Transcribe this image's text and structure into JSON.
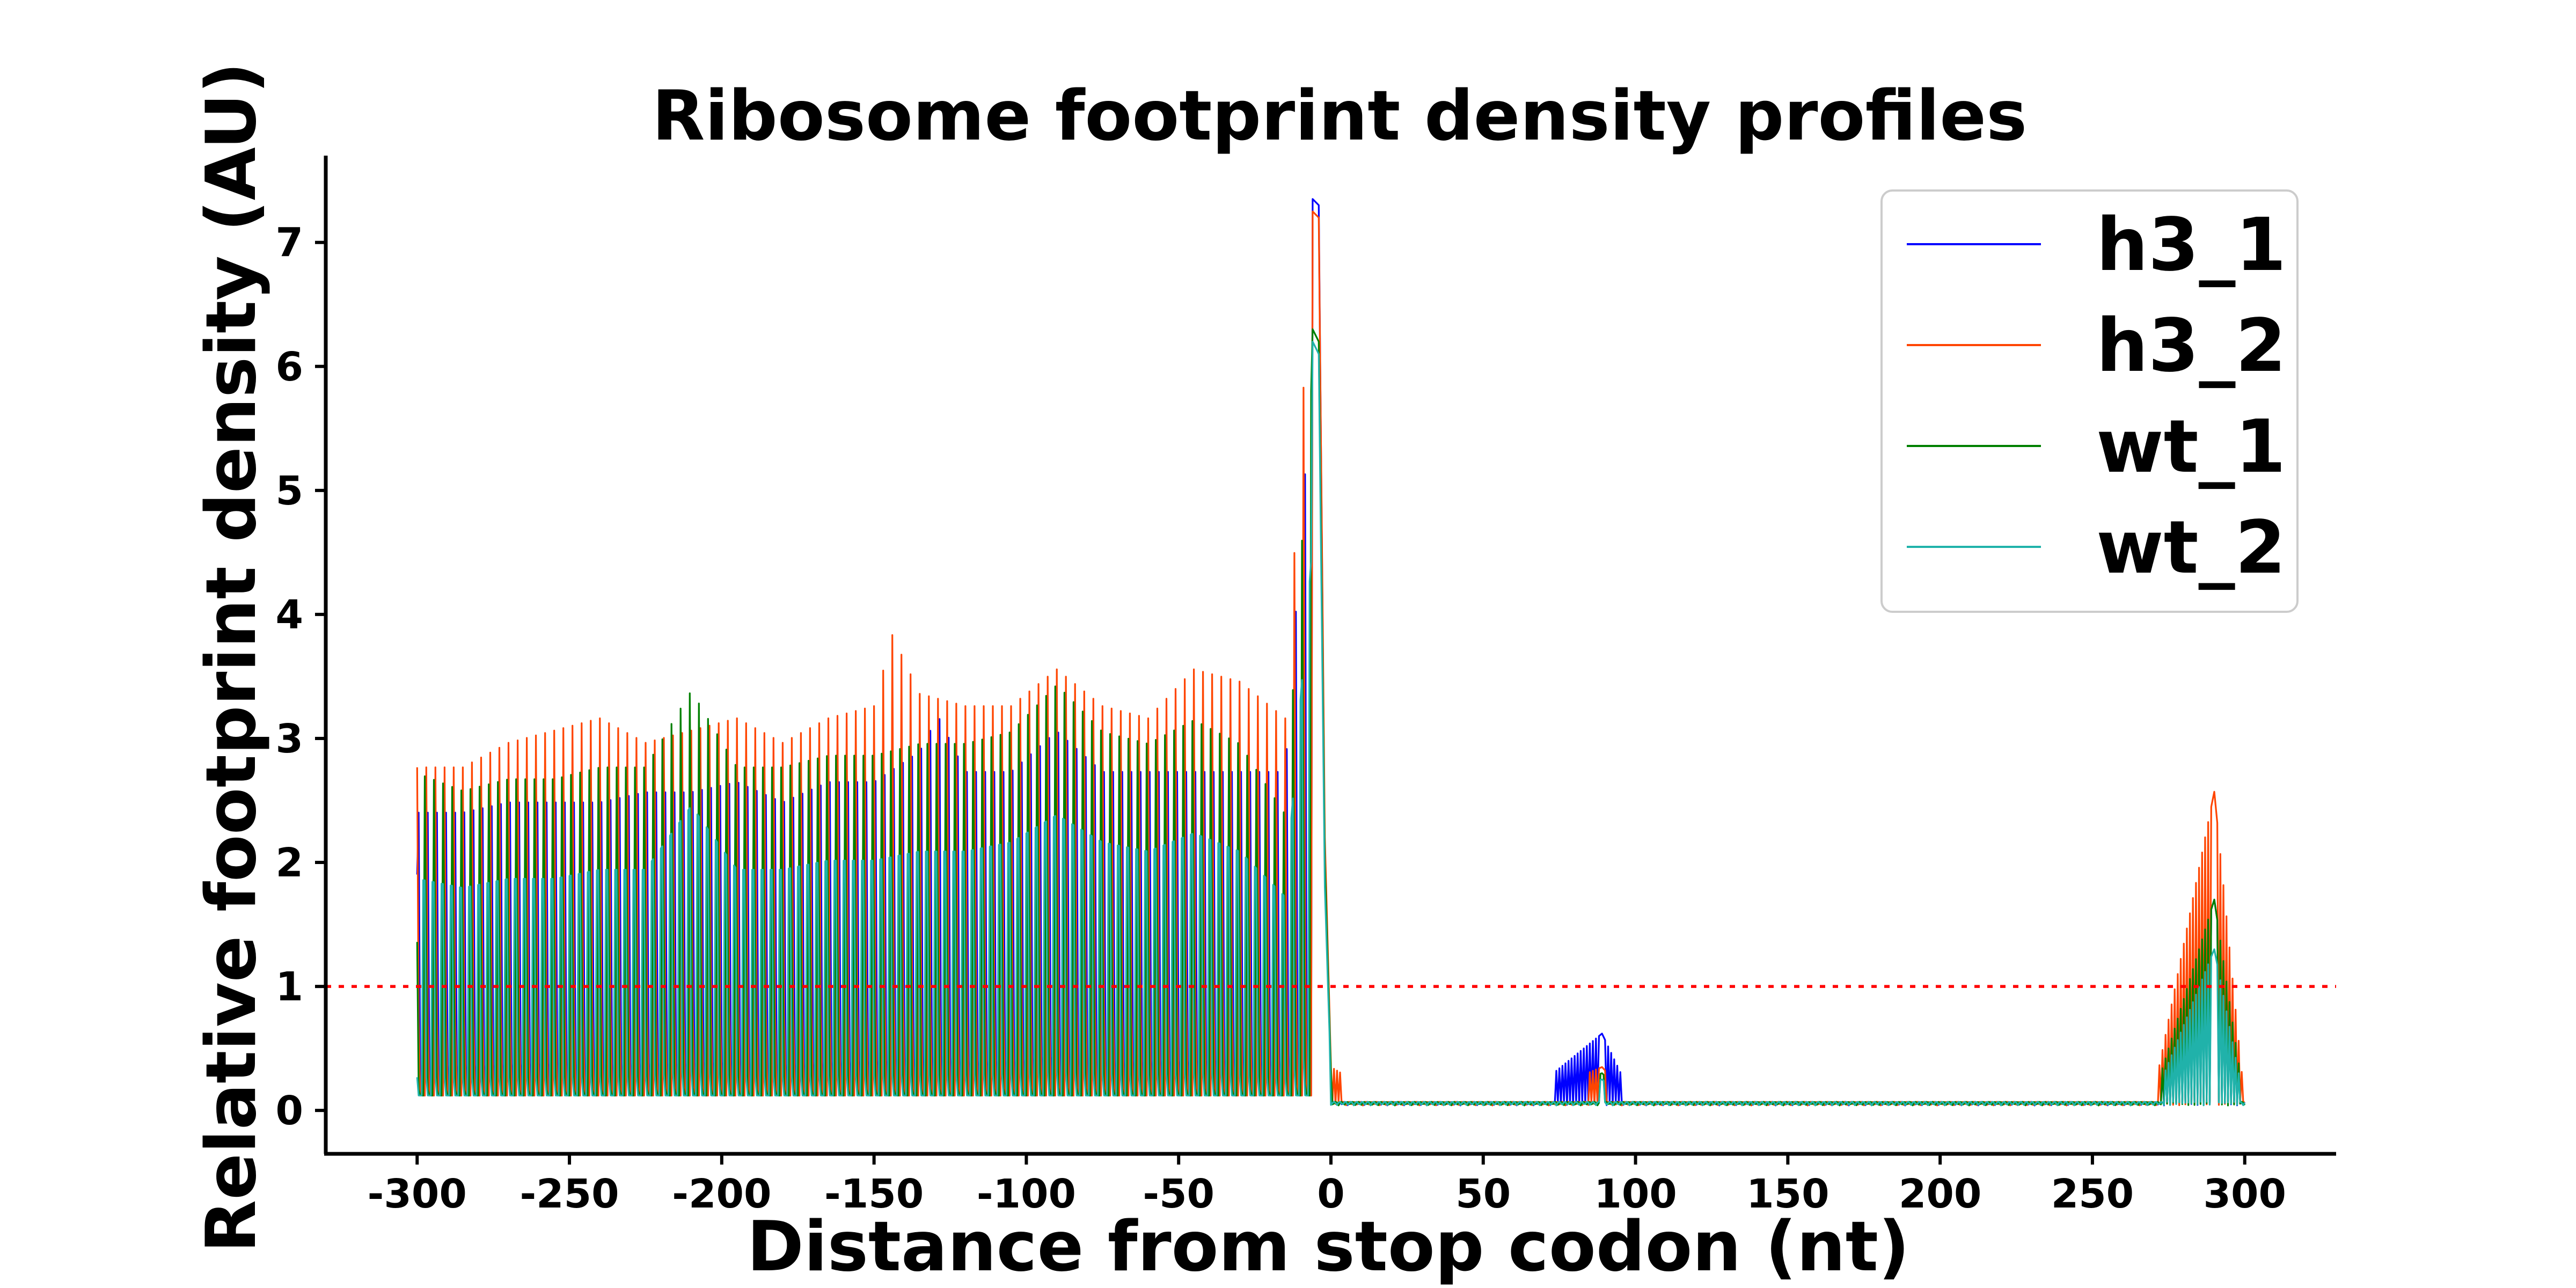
{
  "chart_data": {
    "type": "line",
    "title": "Ribosome footprint density profiles",
    "xlabel": "Distance from stop codon  (nt)",
    "ylabel": "Relative footprint density (AU)",
    "xlim": [
      -330,
      330
    ],
    "ylim": [
      -0.35,
      7.7
    ],
    "xticks": [
      -300,
      -250,
      -200,
      -150,
      -100,
      -50,
      0,
      50,
      100,
      150,
      200,
      250,
      300
    ],
    "yticks": [
      0,
      1,
      2,
      3,
      4,
      5,
      6,
      7
    ],
    "grid": false,
    "legend_position": "top-right",
    "reference_line": {
      "y": 1,
      "color": "#ff0000",
      "style": "dotted"
    },
    "series": [
      {
        "name": "h3_1",
        "color": "#0000ff",
        "x": [
          -300,
          -285,
          -270,
          -255,
          -240,
          -225,
          -210,
          -195,
          -180,
          -165,
          -150,
          -135,
          -129,
          -120,
          -105,
          -90,
          -75,
          -60,
          -45,
          -30,
          -15,
          -6,
          -4,
          -2,
          0,
          20,
          40,
          60,
          89,
          100,
          120,
          140,
          166,
          180,
          210,
          230,
          250,
          264,
          270,
          290,
          300
        ],
        "y": [
          2.9,
          2.9,
          3.0,
          3.0,
          3.0,
          3.1,
          3.1,
          3.2,
          3.0,
          3.2,
          3.2,
          3.5,
          3.85,
          3.3,
          3.3,
          3.7,
          3.3,
          3.3,
          3.3,
          3.3,
          3.3,
          7.35,
          7.3,
          2.0,
          0.3,
          0.05,
          0.03,
          0.04,
          0.62,
          0.05,
          0.06,
          0.08,
          0.18,
          0.12,
          0.15,
          0.1,
          0.15,
          0.2,
          0.1,
          1.7,
          0.08
        ]
      },
      {
        "name": "h3_2",
        "color": "#ff4500",
        "x": [
          -300,
          -285,
          -270,
          -255,
          -240,
          -225,
          -210,
          -195,
          -180,
          -165,
          -150,
          -144,
          -135,
          -120,
          -105,
          -90,
          -75,
          -60,
          -45,
          -30,
          -15,
          -6,
          -4,
          -2,
          0,
          20,
          40,
          60,
          89,
          100,
          120,
          140,
          166,
          180,
          210,
          230,
          250,
          264,
          270,
          290,
          300
        ],
        "y": [
          2.8,
          2.8,
          3.0,
          3.1,
          3.2,
          3.0,
          3.1,
          3.2,
          3.0,
          3.2,
          3.3,
          3.88,
          3.4,
          3.3,
          3.3,
          3.6,
          3.3,
          3.2,
          3.6,
          3.5,
          3.2,
          7.25,
          7.2,
          2.2,
          0.35,
          0.06,
          0.04,
          0.05,
          0.35,
          0.05,
          0.06,
          0.1,
          0.14,
          0.12,
          0.25,
          0.14,
          0.18,
          0.22,
          0.12,
          2.57,
          0.06
        ]
      },
      {
        "name": "wt_1",
        "color": "#008000",
        "x": [
          -300,
          -285,
          -270,
          -255,
          -240,
          -225,
          -210,
          -195,
          -180,
          -165,
          -150,
          -135,
          -120,
          -105,
          -90,
          -75,
          -60,
          -45,
          -30,
          -15,
          -6,
          -4,
          -2,
          0,
          20,
          40,
          60,
          89,
          100,
          120,
          140,
          166,
          180,
          210,
          230,
          250,
          270,
          290,
          300
        ],
        "y": [
          2.85,
          2.7,
          2.8,
          2.8,
          2.9,
          2.9,
          3.55,
          2.9,
          2.9,
          3.0,
          3.0,
          3.1,
          3.1,
          3.2,
          3.6,
          3.2,
          3.1,
          3.3,
          3.1,
          2.5,
          6.3,
          6.2,
          2.0,
          0.3,
          0.06,
          0.05,
          0.05,
          0.3,
          0.04,
          0.06,
          0.06,
          0.1,
          0.08,
          0.18,
          0.1,
          0.12,
          0.1,
          1.7,
          0.05
        ]
      },
      {
        "name": "wt_2",
        "color": "#20b2aa",
        "x": [
          -300,
          -285,
          -270,
          -255,
          -240,
          -225,
          -210,
          -195,
          -180,
          -165,
          -150,
          -135,
          -120,
          -105,
          -90,
          -75,
          -60,
          -45,
          -30,
          -15,
          -6,
          -4,
          -2,
          0,
          20,
          40,
          60,
          89,
          100,
          120,
          140,
          166,
          180,
          210,
          230,
          250,
          270,
          290,
          300
        ],
        "y": [
          2.5,
          2.4,
          2.5,
          2.5,
          2.6,
          2.6,
          3.3,
          2.6,
          2.6,
          2.7,
          2.7,
          2.8,
          2.8,
          2.9,
          3.2,
          2.9,
          2.8,
          3.0,
          2.8,
          2.3,
          6.2,
          6.1,
          1.8,
          0.25,
          0.05,
          0.04,
          0.04,
          0.25,
          0.04,
          0.05,
          0.05,
          0.08,
          0.07,
          0.12,
          0.08,
          0.1,
          0.08,
          1.3,
          0.05
        ]
      }
    ]
  }
}
